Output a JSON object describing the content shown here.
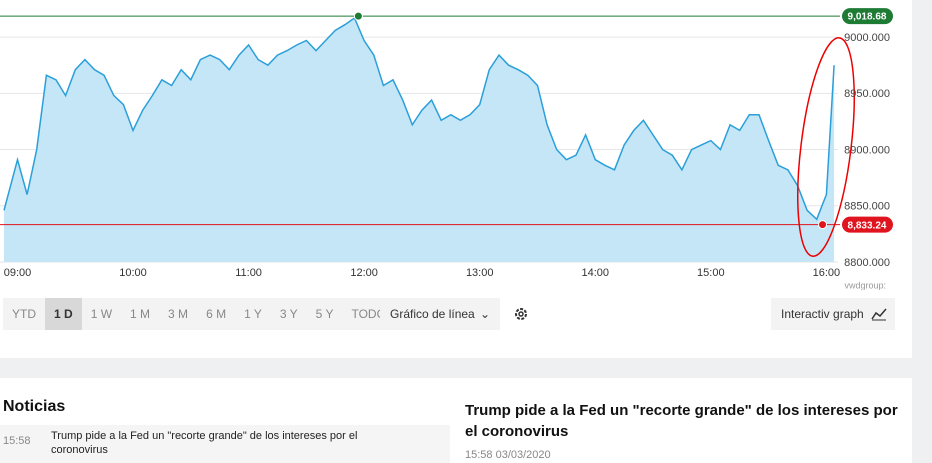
{
  "chart_data": {
    "type": "area",
    "x": [
      "08:53",
      "09:00",
      "09:05",
      "09:10",
      "09:15",
      "09:20",
      "09:25",
      "09:30",
      "09:35",
      "09:40",
      "09:45",
      "09:50",
      "09:55",
      "10:00",
      "10:05",
      "10:10",
      "10:15",
      "10:20",
      "10:25",
      "10:30",
      "10:35",
      "10:40",
      "10:45",
      "10:50",
      "10:55",
      "11:00",
      "11:05",
      "11:10",
      "11:15",
      "11:20",
      "11:25",
      "11:30",
      "11:35",
      "11:40",
      "11:45",
      "11:50",
      "11:55",
      "12:00",
      "12:05",
      "12:10",
      "12:15",
      "12:20",
      "12:25",
      "12:30",
      "12:35",
      "12:40",
      "12:45",
      "12:50",
      "12:55",
      "13:00",
      "13:05",
      "13:10",
      "13:15",
      "13:20",
      "13:25",
      "13:30",
      "13:35",
      "13:40",
      "13:45",
      "13:50",
      "13:55",
      "14:00",
      "14:05",
      "14:10",
      "14:15",
      "14:20",
      "14:25",
      "14:30",
      "14:35",
      "14:40",
      "14:45",
      "14:50",
      "14:55",
      "15:00",
      "15:05",
      "15:10",
      "15:15",
      "15:20",
      "15:25",
      "15:30",
      "15:35",
      "15:40",
      "15:45",
      "15:50",
      "15:55",
      "16:00",
      "16:04"
    ],
    "values": [
      8846,
      8891,
      8860,
      8900,
      8966,
      8962,
      8948,
      8971,
      8980,
      8971,
      8966,
      8948,
      8940,
      8917,
      8935,
      8948,
      8962,
      8957,
      8971,
      8962,
      8980,
      8984,
      8980,
      8971,
      8984,
      8993,
      8980,
      8975,
      8984,
      8988,
      8993,
      8997,
      8988,
      8997,
      9006,
      9011,
      9017,
      8997,
      8984,
      8957,
      8962,
      8944,
      8922,
      8935,
      8944,
      8926,
      8931,
      8926,
      8931,
      8940,
      8971,
      8984,
      8975,
      8971,
      8966,
      8957,
      8922,
      8900,
      8891,
      8895,
      8913,
      8891,
      8886,
      8882,
      8904,
      8917,
      8926,
      8913,
      8900,
      8895,
      8882,
      8900,
      8904,
      8908,
      8900,
      8922,
      8917,
      8931,
      8931,
      8908,
      8886,
      8882,
      8868,
      8846,
      8838,
      8860,
      8975
    ],
    "color": "#2b9fd9",
    "fill": "#c4e6f7",
    "xlim": [
      "08:53",
      "16:05"
    ],
    "xticks": [
      "09:00",
      "10:00",
      "11:00",
      "12:00",
      "13:00",
      "14:00",
      "15:00",
      "16:00"
    ],
    "ylim": [
      8800,
      9033
    ],
    "yticks": [
      {
        "value": 8800,
        "label": "8800.000"
      },
      {
        "value": 8850,
        "label": "8850.000"
      },
      {
        "value": 8900,
        "label": "8900.000"
      },
      {
        "value": 8950,
        "label": "8950.000"
      },
      {
        "value": 9000,
        "label": "9000.000"
      }
    ],
    "grid": true,
    "reference_lines": [
      {
        "x": "11:57",
        "value": 9018.68,
        "label": "9,018.68",
        "color": "#1e7b34"
      },
      {
        "x": "15:58",
        "value": 8833.24,
        "label": "8,833.24",
        "color": "#e0141e"
      }
    ],
    "source": "vwdgroup:"
  },
  "controls": {
    "ranges": [
      "YTD",
      "1 D",
      "1 W",
      "1 M",
      "3 M",
      "6 M",
      "1 Y",
      "3 Y",
      "5 Y",
      "TODO"
    ],
    "selected": "1 D",
    "chart_type": "Gráfico de línea",
    "interactive": "Interactiv graph"
  },
  "news": {
    "title": "Noticias",
    "items": [
      {
        "time": "15:58",
        "text": "Trump pide a la Fed un \"recorte grande\" de los intereses por el coronovirus"
      }
    ],
    "headline": "Trump pide a la Fed un \"recorte grande\" de los intereses por el coronovirus",
    "headline_meta": "15:58 03/03/2020"
  }
}
